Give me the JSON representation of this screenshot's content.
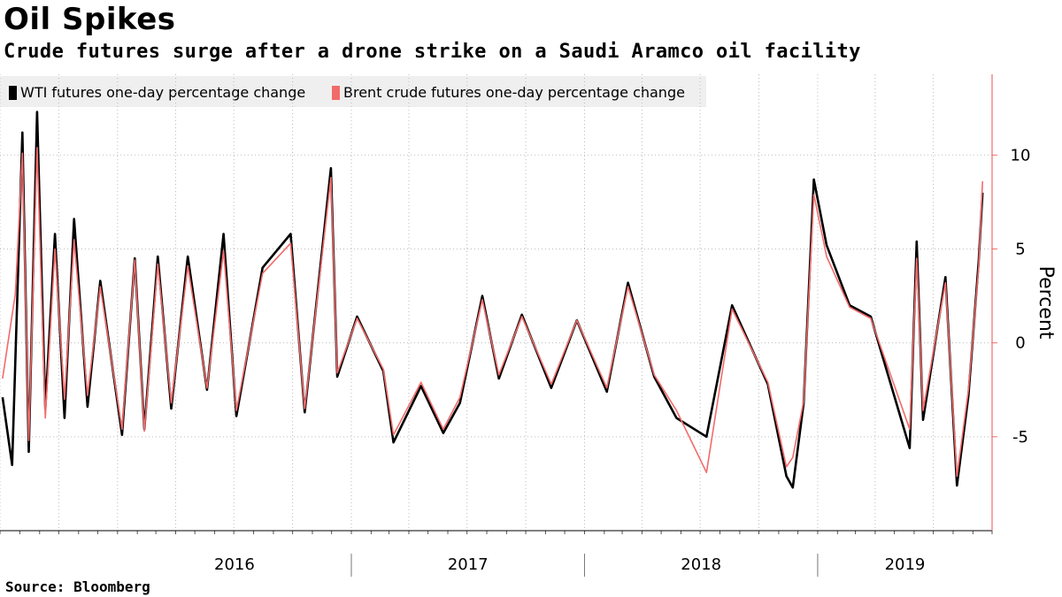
{
  "header": {
    "title": "Oil Spikes",
    "subtitle": "Crude futures surge after a drone strike on a Saudi Aramco oil facility"
  },
  "footer": {
    "source": "Source:  Bloomberg"
  },
  "colors": {
    "wti": "#000000",
    "brent": "#f26b6b",
    "axis": "#f26b6b",
    "grid": "#bbbbbb",
    "legend_bg": "#efefef"
  },
  "chart_data": {
    "type": "line",
    "title": "Oil Spikes",
    "subtitle": "Crude futures surge after a drone strike on a Saudi Aramco oil facility",
    "xlabel": "",
    "ylabel": "Percent",
    "ylim": [
      -10,
      14.3
    ],
    "xlim": [
      "2015-07",
      "2019-10"
    ],
    "y_ticks": [
      10,
      5,
      0,
      -5
    ],
    "y_tick_labels": [
      "10",
      "5",
      "0",
      "-5"
    ],
    "x_year_labels": [
      "2016",
      "2017",
      "2018",
      "2019"
    ],
    "grid": true,
    "legend_position": "top-left",
    "series": [
      {
        "name": "WTI futures one-day percentage change",
        "color": "#000000",
        "points": [
          [
            "2015-07-05",
            -2.9
          ],
          [
            "2015-07-20",
            -6.5
          ],
          [
            "2015-08-05",
            11.2
          ],
          [
            "2015-08-15",
            -5.8
          ],
          [
            "2015-08-28",
            12.3
          ],
          [
            "2015-09-10",
            -3.5
          ],
          [
            "2015-09-25",
            5.8
          ],
          [
            "2015-10-10",
            -4.0
          ],
          [
            "2015-10-25",
            6.6
          ],
          [
            "2015-11-15",
            -3.4
          ],
          [
            "2015-12-05",
            3.3
          ],
          [
            "2016-01-08",
            -4.9
          ],
          [
            "2016-01-28",
            4.5
          ],
          [
            "2016-02-12",
            -4.6
          ],
          [
            "2016-03-04",
            4.6
          ],
          [
            "2016-03-25",
            -3.5
          ],
          [
            "2016-04-20",
            4.6
          ],
          [
            "2016-05-20",
            -2.5
          ],
          [
            "2016-06-15",
            5.8
          ],
          [
            "2016-07-05",
            -3.9
          ],
          [
            "2016-08-15",
            4.0
          ],
          [
            "2016-09-28",
            5.8
          ],
          [
            "2016-10-20",
            -3.7
          ],
          [
            "2016-11-30",
            9.3
          ],
          [
            "2016-12-10",
            -1.8
          ],
          [
            "2017-01-10",
            1.4
          ],
          [
            "2017-02-20",
            -1.5
          ],
          [
            "2017-03-08",
            -5.3
          ],
          [
            "2017-04-20",
            -2.3
          ],
          [
            "2017-05-25",
            -4.8
          ],
          [
            "2017-06-20",
            -3.2
          ],
          [
            "2017-07-25",
            2.5
          ],
          [
            "2017-08-20",
            -1.9
          ],
          [
            "2017-09-25",
            1.5
          ],
          [
            "2017-11-10",
            -2.4
          ],
          [
            "2017-12-20",
            1.2
          ],
          [
            "2018-02-05",
            -2.6
          ],
          [
            "2018-03-10",
            3.2
          ],
          [
            "2018-04-20",
            -1.8
          ],
          [
            "2018-05-25",
            -4.0
          ],
          [
            "2018-07-11",
            -5.0
          ],
          [
            "2018-08-20",
            2.0
          ],
          [
            "2018-10-15",
            -2.2
          ],
          [
            "2018-11-13",
            -7.1
          ],
          [
            "2018-11-23",
            -7.7
          ],
          [
            "2018-12-10",
            -3.2
          ],
          [
            "2018-12-26",
            8.7
          ],
          [
            "2019-01-15",
            5.2
          ],
          [
            "2019-02-20",
            2.0
          ],
          [
            "2019-03-25",
            1.4
          ],
          [
            "2019-05-25",
            -5.6
          ],
          [
            "2019-06-05",
            5.4
          ],
          [
            "2019-06-15",
            -4.1
          ],
          [
            "2019-07-20",
            3.5
          ],
          [
            "2019-08-07",
            -7.6
          ],
          [
            "2019-08-25",
            -2.8
          ],
          [
            "2019-09-10",
            4.3
          ],
          [
            "2019-09-16",
            8.0
          ]
        ]
      },
      {
        "name": "Brent crude futures one-day percentage change",
        "color": "#f26b6b",
        "points": [
          [
            "2015-07-05",
            -1.9
          ],
          [
            "2015-07-25",
            2.6
          ],
          [
            "2015-08-05",
            10.1
          ],
          [
            "2015-08-15",
            -5.2
          ],
          [
            "2015-08-28",
            10.4
          ],
          [
            "2015-09-10",
            -4.0
          ],
          [
            "2015-09-25",
            5.0
          ],
          [
            "2015-10-10",
            -3.0
          ],
          [
            "2015-10-25",
            5.5
          ],
          [
            "2015-11-15",
            -2.8
          ],
          [
            "2015-12-05",
            3.0
          ],
          [
            "2016-01-08",
            -4.6
          ],
          [
            "2016-01-28",
            4.4
          ],
          [
            "2016-02-12",
            -4.7
          ],
          [
            "2016-03-04",
            4.2
          ],
          [
            "2016-03-25",
            -3.2
          ],
          [
            "2016-04-20",
            4.1
          ],
          [
            "2016-05-20",
            -2.4
          ],
          [
            "2016-06-15",
            4.9
          ],
          [
            "2016-07-05",
            -3.6
          ],
          [
            "2016-08-15",
            3.7
          ],
          [
            "2016-09-28",
            5.3
          ],
          [
            "2016-10-20",
            -3.5
          ],
          [
            "2016-11-30",
            8.8
          ],
          [
            "2016-12-10",
            -1.6
          ],
          [
            "2017-01-10",
            1.3
          ],
          [
            "2017-02-20",
            -1.4
          ],
          [
            "2017-03-08",
            -4.9
          ],
          [
            "2017-04-20",
            -2.1
          ],
          [
            "2017-05-25",
            -4.6
          ],
          [
            "2017-06-20",
            -2.9
          ],
          [
            "2017-07-25",
            2.3
          ],
          [
            "2017-08-20",
            -1.7
          ],
          [
            "2017-09-25",
            1.4
          ],
          [
            "2017-11-10",
            -2.2
          ],
          [
            "2017-12-20",
            1.2
          ],
          [
            "2018-02-05",
            -2.4
          ],
          [
            "2018-03-10",
            3.0
          ],
          [
            "2018-04-20",
            -1.7
          ],
          [
            "2018-05-25",
            -3.6
          ],
          [
            "2018-07-11",
            -6.9
          ],
          [
            "2018-08-20",
            1.8
          ],
          [
            "2018-10-15",
            -2.1
          ],
          [
            "2018-11-13",
            -6.6
          ],
          [
            "2018-11-23",
            -6.1
          ],
          [
            "2018-12-10",
            -3.1
          ],
          [
            "2018-12-26",
            7.9
          ],
          [
            "2019-01-15",
            4.6
          ],
          [
            "2019-02-20",
            1.9
          ],
          [
            "2019-03-25",
            1.3
          ],
          [
            "2019-05-25",
            -4.6
          ],
          [
            "2019-06-05",
            4.5
          ],
          [
            "2019-06-15",
            -3.6
          ],
          [
            "2019-07-20",
            3.2
          ],
          [
            "2019-08-07",
            -7.1
          ],
          [
            "2019-08-25",
            -2.5
          ],
          [
            "2019-09-10",
            4.0
          ],
          [
            "2019-09-16",
            8.6
          ]
        ]
      }
    ]
  }
}
